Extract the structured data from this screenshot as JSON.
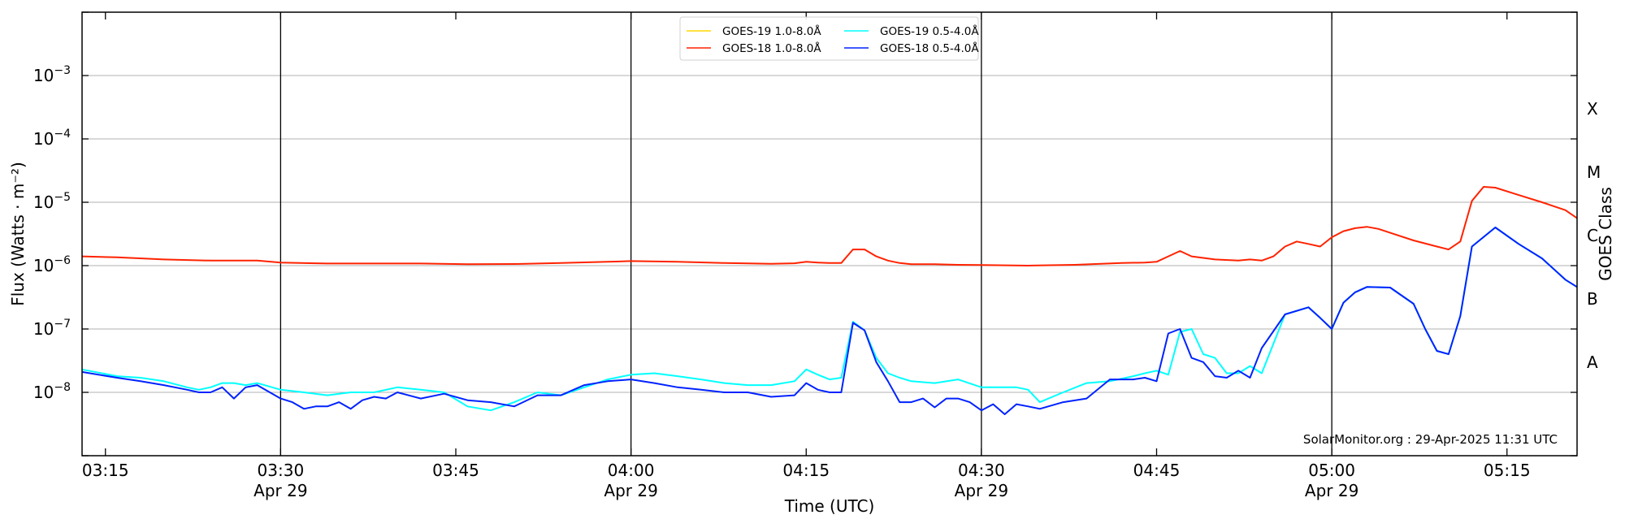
{
  "chart_data": {
    "type": "line",
    "xlabel": "Time (UTC)",
    "ylabel": "Flux (Watts · m⁻²)",
    "ylabel_right": "GOES Class",
    "x_range": [
      "03:13",
      "05:21"
    ],
    "ylim": [
      1e-09,
      0.01
    ],
    "yscale": "log",
    "y_ticks": [
      {
        "value": 1e-08,
        "base": "10",
        "exp": "−8"
      },
      {
        "value": 1e-07,
        "base": "10",
        "exp": "−7"
      },
      {
        "value": 1e-06,
        "base": "10",
        "exp": "−6"
      },
      {
        "value": 1e-05,
        "base": "10",
        "exp": "−5"
      },
      {
        "value": 0.0001,
        "base": "10",
        "exp": "−4"
      },
      {
        "value": 0.001,
        "base": "10",
        "exp": "−3"
      }
    ],
    "x_ticks": [
      {
        "time": "03:15",
        "label": "03:15",
        "sublabel": ""
      },
      {
        "time": "03:30",
        "label": "03:30",
        "sublabel": "Apr 29"
      },
      {
        "time": "03:45",
        "label": "03:45",
        "sublabel": ""
      },
      {
        "time": "04:00",
        "label": "04:00",
        "sublabel": "Apr 29"
      },
      {
        "time": "04:15",
        "label": "04:15",
        "sublabel": ""
      },
      {
        "time": "04:30",
        "label": "04:30",
        "sublabel": "Apr 29"
      },
      {
        "time": "04:45",
        "label": "04:45",
        "sublabel": ""
      },
      {
        "time": "05:00",
        "label": "05:00",
        "sublabel": "Apr 29"
      },
      {
        "time": "05:15",
        "label": "05:15",
        "sublabel": ""
      }
    ],
    "vlines": [
      "03:30",
      "04:00",
      "04:30",
      "05:00"
    ],
    "grid": true,
    "legend_position": "top-center",
    "classes": [
      {
        "label": "A",
        "value": 3e-08
      },
      {
        "label": "B",
        "value": 3e-07
      },
      {
        "label": "C",
        "value": 3e-06
      },
      {
        "label": "M",
        "value": 3e-05
      },
      {
        "label": "X",
        "value": 0.0003
      }
    ],
    "credit": "SolarMonitor.org : 29-Apr-2025 11:31 UTC",
    "series": [
      {
        "name": "GOES-19 1.0-8.0Å",
        "color": "#FFD700",
        "legend_col": 0,
        "legend_row": 0,
        "x": [],
        "values": []
      },
      {
        "name": "GOES-19 0.5-4.0Å",
        "color": "#00FFFF",
        "legend_col": 1,
        "legend_row": 0,
        "x": [
          "03:13",
          "03:16",
          "03:18",
          "03:20",
          "03:22",
          "03:23",
          "03:24",
          "03:25",
          "03:26",
          "03:27",
          "03:28",
          "03:30",
          "03:32",
          "03:34",
          "03:36",
          "03:38",
          "03:40",
          "03:42",
          "03:44",
          "03:46",
          "03:48",
          "03:50",
          "03:52",
          "03:54",
          "03:56",
          "03:58",
          "04:00",
          "04:02",
          "04:04",
          "04:06",
          "04:08",
          "04:10",
          "04:12",
          "04:14",
          "04:15",
          "04:16",
          "04:17",
          "04:18",
          "04:19",
          "04:20",
          "04:21",
          "04:22",
          "04:23",
          "04:24",
          "04:26",
          "04:28",
          "04:30",
          "04:32",
          "04:33",
          "04:34",
          "04:35",
          "04:37",
          "04:39",
          "04:41",
          "04:43",
          "04:44",
          "04:45",
          "04:46",
          "04:47",
          "04:48",
          "04:49",
          "04:50",
          "04:51",
          "04:52",
          "04:53",
          "04:54",
          "04:56",
          "04:58",
          "04:59",
          "05:00",
          "05:01",
          "05:02",
          "05:03",
          "05:05",
          "05:07",
          "05:08",
          "05:09",
          "05:10",
          "05:11",
          "05:12",
          "05:14",
          "05:16",
          "05:18",
          "05:20",
          "05:21"
        ],
        "values": [
          2.3e-08,
          1.8e-08,
          1.7e-08,
          1.5e-08,
          1.2e-08,
          1.1e-08,
          1.2e-08,
          1.4e-08,
          1.4e-08,
          1.3e-08,
          1.4e-08,
          1.1e-08,
          1e-08,
          9e-09,
          1e-08,
          1e-08,
          1.2e-08,
          1.1e-08,
          1e-08,
          6e-09,
          5.2e-09,
          7e-09,
          1e-08,
          9e-09,
          1.2e-08,
          1.6e-08,
          1.9e-08,
          2e-08,
          1.8e-08,
          1.6e-08,
          1.4e-08,
          1.3e-08,
          1.3e-08,
          1.5e-08,
          2.3e-08,
          1.9e-08,
          1.6e-08,
          1.7e-08,
          1.3e-07,
          9.5e-08,
          3.5e-08,
          2e-08,
          1.7e-08,
          1.5e-08,
          1.4e-08,
          1.6e-08,
          1.2e-08,
          1.2e-08,
          1.2e-08,
          1.1e-08,
          7e-09,
          1e-08,
          1.4e-08,
          1.5e-08,
          1.8e-08,
          2e-08,
          2.2e-08,
          1.9e-08,
          9e-08,
          1e-07,
          4e-08,
          3.5e-08,
          2e-08,
          2e-08,
          2.6e-08,
          2e-08,
          1.7e-07,
          2.2e-07,
          1.5e-07,
          1e-07,
          2.6e-07,
          3.8e-07,
          4.6e-07,
          4.5e-07,
          2.5e-07,
          1e-07,
          4.5e-08,
          4e-08,
          1.6e-07,
          2e-06,
          4e-06,
          2.2e-06,
          1.3e-06,
          6e-07,
          4.6e-07
        ]
      },
      {
        "name": "GOES-18 1.0-8.0Å",
        "color": "#FF2200",
        "legend_col": 0,
        "legend_row": 1,
        "x": [
          "03:13",
          "03:16",
          "03:20",
          "03:24",
          "03:28",
          "03:30",
          "03:34",
          "03:38",
          "03:42",
          "03:46",
          "03:50",
          "03:54",
          "03:58",
          "04:00",
          "04:04",
          "04:08",
          "04:12",
          "04:14",
          "04:15",
          "04:16",
          "04:17",
          "04:18",
          "04:19",
          "04:20",
          "04:21",
          "04:22",
          "04:23",
          "04:24",
          "04:26",
          "04:28",
          "04:30",
          "04:34",
          "04:38",
          "04:42",
          "04:44",
          "04:45",
          "04:46",
          "04:47",
          "04:48",
          "04:50",
          "04:52",
          "04:53",
          "04:54",
          "04:55",
          "04:56",
          "04:57",
          "04:58",
          "04:59",
          "05:00",
          "05:01",
          "05:02",
          "05:03",
          "05:04",
          "05:05",
          "05:07",
          "05:09",
          "05:10",
          "05:11",
          "05:12",
          "05:13",
          "05:14",
          "05:16",
          "05:18",
          "05:20",
          "05:21"
        ],
        "values": [
          1.4e-06,
          1.35e-06,
          1.25e-06,
          1.2e-06,
          1.2e-06,
          1.12e-06,
          1.08e-06,
          1.08e-06,
          1.08e-06,
          1.05e-06,
          1.06e-06,
          1.1e-06,
          1.15e-06,
          1.18e-06,
          1.15e-06,
          1.1e-06,
          1.07e-06,
          1.09e-06,
          1.15e-06,
          1.12e-06,
          1.1e-06,
          1.1e-06,
          1.8e-06,
          1.8e-06,
          1.4e-06,
          1.2e-06,
          1.1e-06,
          1.05e-06,
          1.05e-06,
          1.03e-06,
          1.02e-06,
          1e-06,
          1.03e-06,
          1.1e-06,
          1.12e-06,
          1.15e-06,
          1.4e-06,
          1.7e-06,
          1.4e-06,
          1.25e-06,
          1.2e-06,
          1.25e-06,
          1.2e-06,
          1.4e-06,
          2e-06,
          2.4e-06,
          2.2e-06,
          2e-06,
          2.8e-06,
          3.5e-06,
          3.9e-06,
          4.1e-06,
          3.8e-06,
          3.3e-06,
          2.5e-06,
          2e-06,
          1.8e-06,
          2.4e-06,
          1.05e-05,
          1.75e-05,
          1.7e-05,
          1.3e-05,
          1e-05,
          7.5e-06,
          5.6e-06
        ]
      },
      {
        "name": "GOES-18 0.5-4.0Å",
        "color": "#0022FF",
        "legend_col": 1,
        "legend_row": 1,
        "x": [
          "03:13",
          "03:16",
          "03:18",
          "03:20",
          "03:22",
          "03:23",
          "03:24",
          "03:25",
          "03:26",
          "03:27",
          "03:28",
          "03:30",
          "03:31",
          "03:32",
          "03:33",
          "03:34",
          "03:35",
          "03:36",
          "03:37",
          "03:38",
          "03:39",
          "03:40",
          "03:42",
          "03:44",
          "03:46",
          "03:48",
          "03:50",
          "03:52",
          "03:54",
          "03:56",
          "03:58",
          "04:00",
          "04:02",
          "04:04",
          "04:06",
          "04:08",
          "04:10",
          "04:12",
          "04:14",
          "04:15",
          "04:16",
          "04:17",
          "04:18",
          "04:19",
          "04:20",
          "04:21",
          "04:22",
          "04:23",
          "04:24",
          "04:25",
          "04:26",
          "04:27",
          "04:28",
          "04:29",
          "04:30",
          "04:31",
          "04:32",
          "04:33",
          "04:34",
          "04:35",
          "04:37",
          "04:39",
          "04:41",
          "04:43",
          "04:44",
          "04:45",
          "04:46",
          "04:47",
          "04:48",
          "04:49",
          "04:50",
          "04:51",
          "04:52",
          "04:53",
          "04:54",
          "04:56",
          "04:58",
          "04:59",
          "05:00",
          "05:01",
          "05:02",
          "05:03",
          "05:05",
          "05:07",
          "05:08",
          "05:09",
          "05:10",
          "05:11",
          "05:12",
          "05:14",
          "05:16",
          "05:18",
          "05:20",
          "05:21"
        ],
        "values": [
          2.1e-08,
          1.7e-08,
          1.5e-08,
          1.3e-08,
          1.1e-08,
          1e-08,
          1e-08,
          1.2e-08,
          8e-09,
          1.2e-08,
          1.3e-08,
          8e-09,
          7e-09,
          5.5e-09,
          6e-09,
          6e-09,
          7e-09,
          5.5e-09,
          7.5e-09,
          8.5e-09,
          8e-09,
          1e-08,
          8e-09,
          9.5e-09,
          7.5e-09,
          7e-09,
          6e-09,
          9e-09,
          9e-09,
          1.3e-08,
          1.5e-08,
          1.6e-08,
          1.4e-08,
          1.2e-08,
          1.1e-08,
          1e-08,
          1e-08,
          8.5e-09,
          9e-09,
          1.4e-08,
          1.1e-08,
          1e-08,
          1e-08,
          1.25e-07,
          9.5e-08,
          3e-08,
          1.5e-08,
          7e-09,
          7e-09,
          8e-09,
          5.8e-09,
          8e-09,
          8e-09,
          7e-09,
          5.2e-09,
          6.5e-09,
          4.5e-09,
          6.5e-09,
          6e-09,
          5.5e-09,
          7e-09,
          8e-09,
          1.6e-08,
          1.6e-08,
          1.7e-08,
          1.5e-08,
          8.5e-08,
          1e-07,
          3.5e-08,
          3e-08,
          1.8e-08,
          1.7e-08,
          2.2e-08,
          1.7e-08,
          5e-08,
          1.7e-07,
          2.2e-07,
          1.5e-07,
          1e-07,
          2.6e-07,
          3.8e-07,
          4.6e-07,
          4.5e-07,
          2.5e-07,
          1e-07,
          4.5e-08,
          4e-08,
          1.6e-07,
          2e-06,
          4e-06,
          2.2e-06,
          1.3e-06,
          6e-07,
          4.6e-07
        ]
      }
    ]
  }
}
